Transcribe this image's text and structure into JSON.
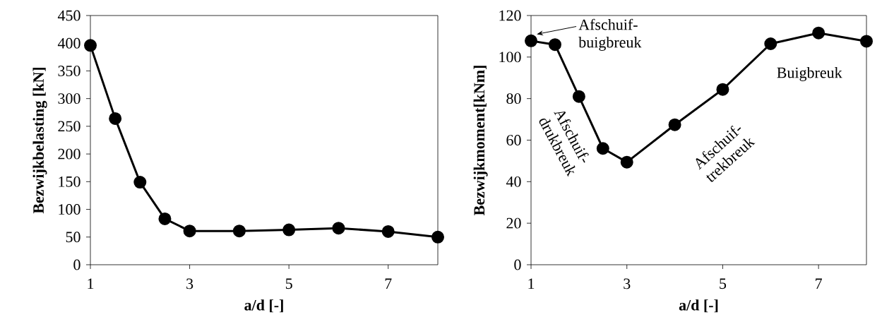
{
  "chart_data": [
    {
      "type": "line",
      "xlabel": "a/d [-]",
      "ylabel": "Bezwijkbelasting  [kN]",
      "x": [
        1,
        1.5,
        2,
        2.5,
        3,
        4,
        5,
        6,
        7,
        8
      ],
      "series": [
        {
          "color": "#000000",
          "values": [
            396,
            264,
            149,
            83,
            61,
            61,
            63,
            66,
            60,
            50
          ]
        }
      ],
      "xlim": [
        1,
        8
      ],
      "xticks": [
        1,
        3,
        5,
        7
      ],
      "ylim": [
        0,
        450
      ],
      "yticks": [
        0,
        50,
        100,
        150,
        200,
        250,
        300,
        350,
        400,
        450
      ],
      "marker": "circle",
      "line_style": "solid",
      "grid": false
    },
    {
      "type": "line",
      "xlabel": "a/d [-]",
      "ylabel": "Bezwijkmoment[kNm]",
      "x": [
        1,
        1.5,
        2,
        2.5,
        3,
        4,
        5,
        6,
        7,
        8
      ],
      "series": [
        {
          "color": "#000000",
          "values": [
            107.8,
            106,
            81,
            56,
            49.4,
            67.4,
            84.4,
            106.4,
            111.6,
            107.6
          ]
        }
      ],
      "xlim": [
        1,
        8
      ],
      "xticks": [
        1,
        3,
        5,
        7
      ],
      "ylim": [
        0,
        120
      ],
      "yticks": [
        0,
        20,
        40,
        60,
        80,
        100,
        120
      ],
      "marker": "circle",
      "line_style": "solid",
      "grid": false,
      "annotations": [
        {
          "text": "Afschuif-buigbreuk",
          "x": 1.12,
          "y": 111
        },
        "Afschuif-drukbreuk",
        "Afschuif-trekbreuk",
        "Buigbreuk"
      ]
    }
  ]
}
